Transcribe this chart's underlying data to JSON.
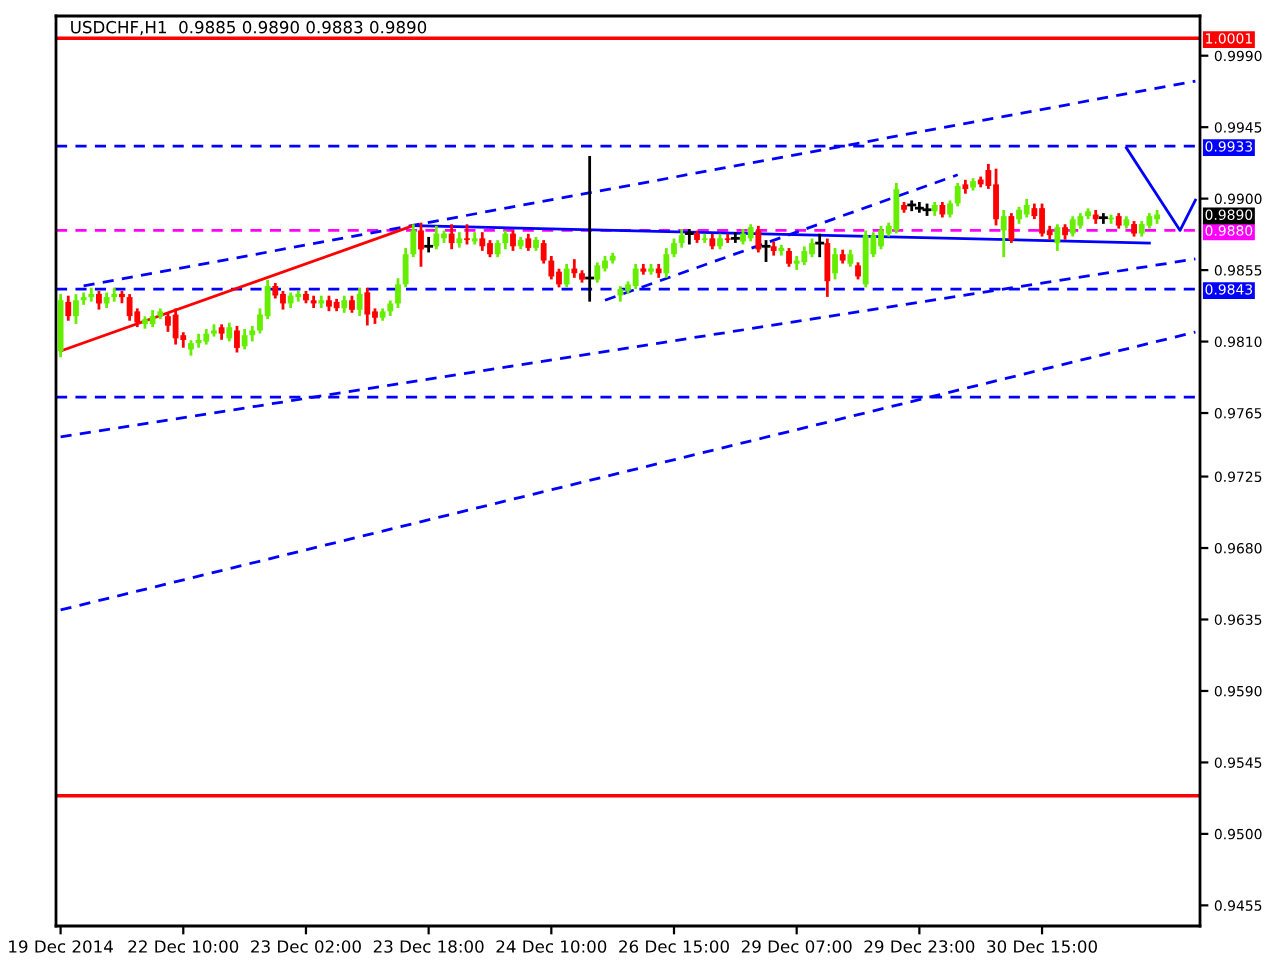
{
  "chart_data": {
    "type": "candlestick",
    "title": "USDCHF,H1  0.9885 0.9890 0.9883 0.9890",
    "categories": [
      "19 Dec 2014",
      null,
      null,
      null,
      null,
      null,
      null,
      null,
      null,
      null,
      null,
      null,
      null,
      null,
      null,
      null,
      "22 Dec 10:00",
      null,
      null,
      null,
      null,
      null,
      null,
      null,
      null,
      null,
      null,
      null,
      null,
      null,
      null,
      null,
      "23 Dec 02:00",
      null,
      null,
      null,
      null,
      null,
      null,
      null,
      null,
      null,
      null,
      null,
      null,
      null,
      null,
      null,
      "23 Dec 18:00",
      null,
      null,
      null,
      null,
      null,
      null,
      null,
      null,
      null,
      null,
      null,
      null,
      null,
      null,
      null,
      "24 Dec 10:00",
      null,
      null,
      null,
      null,
      null,
      null,
      null,
      null,
      null,
      null,
      null,
      null,
      null,
      null,
      null,
      "26 Dec 15:00",
      null,
      null,
      null,
      null,
      null,
      null,
      null,
      null,
      null,
      null,
      null,
      null,
      null,
      null,
      null,
      "29 Dec 07:00",
      null,
      null,
      null,
      null,
      null,
      null,
      null,
      null,
      null,
      null,
      null,
      null,
      null,
      null,
      null,
      "29 Dec 23:00",
      null,
      null,
      null,
      null,
      null,
      null,
      null,
      null,
      null,
      null,
      null,
      null,
      null,
      null,
      null,
      "30 Dec 15:00",
      null,
      null,
      null,
      null,
      null,
      null,
      null,
      null,
      null,
      null,
      null,
      null,
      null,
      null,
      null,
      null,
      null,
      null,
      null,
      null
    ],
    "ohlc": [
      [
        0.9804,
        0.9839,
        0.9801,
        0.9836
      ],
      [
        0.9835,
        0.9838,
        0.9824,
        0.9826
      ],
      [
        0.9826,
        0.9839,
        0.9822,
        0.9836
      ],
      [
        0.9836,
        0.984,
        0.9834,
        0.9838
      ],
      [
        0.9838,
        0.9843,
        0.9836,
        0.984
      ],
      [
        0.984,
        0.9841,
        0.9831,
        0.9834
      ],
      [
        0.9834,
        0.984,
        0.9832,
        0.9838
      ],
      [
        0.9838,
        0.9843,
        0.9836,
        0.984
      ],
      [
        0.984,
        0.9841,
        0.9835,
        0.9838
      ],
      [
        0.9838,
        0.9839,
        0.9824,
        0.9826
      ],
      [
        0.9829,
        0.983,
        0.982,
        0.9822
      ],
      [
        0.9821,
        0.9825,
        0.9819,
        0.9824
      ],
      [
        0.9821,
        0.9829,
        0.982,
        0.9826
      ],
      [
        0.9826,
        0.983,
        0.9825,
        0.9829
      ],
      [
        0.9826,
        0.9827,
        0.9817,
        0.982
      ],
      [
        0.9827,
        0.983,
        0.9809,
        0.9812
      ],
      [
        0.9814,
        0.9815,
        0.9807,
        0.9811
      ],
      [
        0.9805,
        0.981,
        0.9802,
        0.9809
      ],
      [
        0.9809,
        0.9814,
        0.9807,
        0.9811
      ],
      [
        0.981,
        0.9817,
        0.9809,
        0.9815
      ],
      [
        0.9815,
        0.982,
        0.9814,
        0.9817
      ],
      [
        0.9819,
        0.982,
        0.9812,
        0.9815
      ],
      [
        0.9812,
        0.9821,
        0.9811,
        0.9819
      ],
      [
        0.9817,
        0.9819,
        0.9804,
        0.9806
      ],
      [
        0.9807,
        0.9817,
        0.9806,
        0.9814
      ],
      [
        0.9814,
        0.9819,
        0.9811,
        0.9817
      ],
      [
        0.9817,
        0.983,
        0.9816,
        0.9827
      ],
      [
        0.9826,
        0.9848,
        0.9825,
        0.9845
      ],
      [
        0.9845,
        0.9846,
        0.9838,
        0.9839
      ],
      [
        0.984,
        0.9841,
        0.9831,
        0.9834
      ],
      [
        0.9834,
        0.984,
        0.9832,
        0.9839
      ],
      [
        0.9838,
        0.9841,
        0.9836,
        0.984
      ],
      [
        0.984,
        0.9841,
        0.9835,
        0.9836
      ],
      [
        0.9836,
        0.9838,
        0.9832,
        0.9834
      ],
      [
        0.9834,
        0.9838,
        0.9832,
        0.9836
      ],
      [
        0.9836,
        0.9838,
        0.983,
        0.9832
      ],
      [
        0.9835,
        0.9836,
        0.983,
        0.9831
      ],
      [
        0.9831,
        0.9838,
        0.9829,
        0.9836
      ],
      [
        0.9836,
        0.9838,
        0.9829,
        0.983
      ],
      [
        0.983,
        0.9843,
        0.9827,
        0.984
      ],
      [
        0.9841,
        0.9843,
        0.9821,
        0.9827
      ],
      [
        0.9829,
        0.983,
        0.9822,
        0.9825
      ],
      [
        0.9825,
        0.983,
        0.9824,
        0.9829
      ],
      [
        0.9829,
        0.9835,
        0.9827,
        0.9834
      ],
      [
        0.9834,
        0.9849,
        0.9832,
        0.9846
      ],
      [
        0.9846,
        0.9868,
        0.9845,
        0.9865
      ],
      [
        0.9865,
        0.9883,
        0.9864,
        0.988
      ],
      [
        0.988,
        0.9884,
        0.9858,
        0.9868
      ],
      [
        0.987,
        0.9875,
        0.9867,
        0.987
      ],
      [
        0.987,
        0.9882,
        0.9869,
        0.9878
      ],
      [
        0.9875,
        0.9879,
        0.9873,
        0.9878
      ],
      [
        0.9878,
        0.9883,
        0.9869,
        0.9872
      ],
      [
        0.9872,
        0.9878,
        0.987,
        0.9875
      ],
      [
        0.9875,
        0.9883,
        0.9872,
        0.9874
      ],
      [
        0.9873,
        0.9878,
        0.9872,
        0.9875
      ],
      [
        0.9875,
        0.9878,
        0.9868,
        0.987
      ],
      [
        0.9872,
        0.9873,
        0.9864,
        0.9865
      ],
      [
        0.9865,
        0.9873,
        0.9864,
        0.9872
      ],
      [
        0.9872,
        0.9879,
        0.9869,
        0.9878
      ],
      [
        0.9878,
        0.9879,
        0.9868,
        0.987
      ],
      [
        0.987,
        0.9875,
        0.9869,
        0.9874
      ],
      [
        0.9875,
        0.9877,
        0.9868,
        0.9869
      ],
      [
        0.9869,
        0.9875,
        0.9868,
        0.9874
      ],
      [
        0.9872,
        0.9873,
        0.986,
        0.9861
      ],
      [
        0.9861,
        0.9863,
        0.985,
        0.9851
      ],
      [
        0.9854,
        0.9855,
        0.9845,
        0.9846
      ],
      [
        0.9846,
        0.9858,
        0.9845,
        0.9856
      ],
      [
        0.9856,
        0.9861,
        0.9851,
        0.9853
      ],
      [
        0.9853,
        0.9854,
        0.9848,
        0.9849
      ],
      [
        0.985,
        0.9926,
        0.9836,
        0.985
      ],
      [
        0.9849,
        0.9859,
        0.9848,
        0.9858
      ],
      [
        0.9856,
        0.9863,
        0.9855,
        0.9861
      ],
      [
        0.9861,
        0.9865,
        0.986,
        0.9864
      ],
      [
        0.9839,
        0.9844,
        0.9836,
        0.9843
      ],
      [
        0.9842,
        0.9847,
        0.9841,
        0.9846
      ],
      [
        0.9845,
        0.9858,
        0.9844,
        0.9856
      ],
      [
        0.9856,
        0.9858,
        0.9853,
        0.9854
      ],
      [
        0.9854,
        0.9858,
        0.9853,
        0.9856
      ],
      [
        0.9856,
        0.9858,
        0.9851,
        0.9853
      ],
      [
        0.9853,
        0.9868,
        0.9851,
        0.9865
      ],
      [
        0.9865,
        0.9874,
        0.9864,
        0.9872
      ],
      [
        0.9872,
        0.988,
        0.987,
        0.9877
      ],
      [
        0.9878,
        0.988,
        0.9872,
        0.9878
      ],
      [
        0.9878,
        0.9879,
        0.9873,
        0.9874
      ],
      [
        0.9874,
        0.9877,
        0.9873,
        0.9875
      ],
      [
        0.9875,
        0.9877,
        0.9869,
        0.987
      ],
      [
        0.987,
        0.9877,
        0.9869,
        0.9875
      ],
      [
        0.9875,
        0.9877,
        0.9873,
        0.9874
      ],
      [
        0.9875,
        0.9878,
        0.9873,
        0.9875
      ],
      [
        0.9873,
        0.988,
        0.9872,
        0.9878
      ],
      [
        0.9875,
        0.9883,
        0.9874,
        0.9882
      ],
      [
        0.988,
        0.9882,
        0.9867,
        0.9868
      ],
      [
        0.987,
        0.9873,
        0.9861,
        0.987
      ],
      [
        0.987,
        0.9872,
        0.9865,
        0.9867
      ],
      [
        0.9867,
        0.987,
        0.9865,
        0.9869
      ],
      [
        0.9867,
        0.9868,
        0.9858,
        0.9859
      ],
      [
        0.9859,
        0.9863,
        0.9856,
        0.9861
      ],
      [
        0.986,
        0.9869,
        0.9859,
        0.9867
      ],
      [
        0.9865,
        0.9874,
        0.9864,
        0.9872
      ],
      [
        0.9872,
        0.9877,
        0.9864,
        0.9872
      ],
      [
        0.9872,
        0.9874,
        0.9839,
        0.9848
      ],
      [
        0.9853,
        0.9868,
        0.985,
        0.9865
      ],
      [
        0.9865,
        0.9867,
        0.986,
        0.9861
      ],
      [
        0.9859,
        0.9867,
        0.9858,
        0.9865
      ],
      [
        0.9858,
        0.9859,
        0.985,
        0.9851
      ],
      [
        0.9846,
        0.9879,
        0.9845,
        0.9877
      ],
      [
        0.9865,
        0.9878,
        0.9864,
        0.9877
      ],
      [
        0.987,
        0.9882,
        0.9869,
        0.988
      ],
      [
        0.9878,
        0.9884,
        0.9877,
        0.9883
      ],
      [
        0.988,
        0.9909,
        0.9879,
        0.9906
      ],
      [
        0.9896,
        0.9897,
        0.9892,
        0.9893
      ],
      [
        0.9896,
        0.9898,
        0.9893,
        0.9896
      ],
      [
        0.9894,
        0.9897,
        0.9892,
        0.9894
      ],
      [
        0.9893,
        0.9896,
        0.989,
        0.9893
      ],
      [
        0.9892,
        0.9897,
        0.989,
        0.9896
      ],
      [
        0.9896,
        0.9897,
        0.9889,
        0.989
      ],
      [
        0.989,
        0.9898,
        0.9889,
        0.9897
      ],
      [
        0.9897,
        0.9909,
        0.9896,
        0.9908
      ],
      [
        0.9909,
        0.9911,
        0.9904,
        0.9906
      ],
      [
        0.9907,
        0.9912,
        0.9906,
        0.9911
      ],
      [
        0.9912,
        0.9913,
        0.9908,
        0.9909
      ],
      [
        0.9918,
        0.9921,
        0.9907,
        0.9908
      ],
      [
        0.9909,
        0.9918,
        0.9884,
        0.9887
      ],
      [
        0.988,
        0.9892,
        0.9864,
        0.9889
      ],
      [
        0.9889,
        0.989,
        0.9873,
        0.9874
      ],
      [
        0.9887,
        0.9894,
        0.9885,
        0.9893
      ],
      [
        0.989,
        0.9899,
        0.9889,
        0.9896
      ],
      [
        0.9894,
        0.9896,
        0.9888,
        0.9889
      ],
      [
        0.9894,
        0.9896,
        0.9877,
        0.9878
      ],
      [
        0.988,
        0.9882,
        0.9875,
        0.9877
      ],
      [
        0.9872,
        0.9883,
        0.9868,
        0.9882
      ],
      [
        0.9882,
        0.9883,
        0.9875,
        0.9877
      ],
      [
        0.9878,
        0.9888,
        0.9877,
        0.9887
      ],
      [
        0.9883,
        0.989,
        0.9882,
        0.9889
      ],
      [
        0.9889,
        0.9893,
        0.9888,
        0.9892
      ],
      [
        0.989,
        0.9892,
        0.9885,
        0.9887
      ],
      [
        0.9888,
        0.989,
        0.9885,
        0.9888
      ],
      [
        0.9887,
        0.9889,
        0.9885,
        0.9888
      ],
      [
        0.9889,
        0.989,
        0.9882,
        0.9883
      ],
      [
        0.9883,
        0.9888,
        0.9882,
        0.9887
      ],
      [
        0.9884,
        0.9885,
        0.9877,
        0.9878
      ],
      [
        0.9878,
        0.9885,
        0.9877,
        0.9884
      ],
      [
        0.9883,
        0.989,
        0.9882,
        0.9889
      ],
      [
        0.9887,
        0.9892,
        0.9885,
        0.989
      ],
      null,
      null,
      null,
      null,
      null
    ],
    "series": [
      {
        "type": "line",
        "color": "#0000ff",
        "line_style": "dashed",
        "values": [
          null,
          null,
          null,
          0.9845,
          null,
          null,
          null,
          null,
          null,
          null,
          null,
          null,
          null,
          null,
          null,
          null,
          null,
          null,
          null,
          null,
          null,
          null,
          null,
          null,
          null,
          null,
          null,
          null,
          null,
          null,
          null,
          null,
          null,
          null,
          null,
          null,
          null,
          null,
          null,
          null,
          null,
          null,
          null,
          null,
          null,
          null,
          null,
          null,
          null,
          null,
          null,
          null,
          null,
          null,
          null,
          null,
          null,
          null,
          null,
          null,
          null,
          null,
          null,
          null,
          null,
          null,
          null,
          null,
          null,
          null,
          null,
          null,
          null,
          null,
          null,
          null,
          null,
          null,
          null,
          null,
          null,
          null,
          null,
          null,
          null,
          null,
          null,
          null,
          null,
          null,
          null,
          null,
          null,
          null,
          null,
          null,
          null,
          null,
          null,
          null,
          null,
          null,
          null,
          null,
          null,
          null,
          null,
          null,
          null,
          null,
          null,
          null,
          null,
          null,
          null,
          null,
          null,
          null,
          null,
          null,
          null,
          null,
          null,
          null,
          null,
          null,
          null,
          null,
          null,
          null,
          null,
          null,
          null,
          null,
          null,
          null,
          null,
          null,
          null,
          null,
          null,
          null,
          null,
          null,
          null,
          null,
          null,
          null,
          0.9974
        ]
      },
      {
        "type": "line",
        "color": "#0000ff",
        "line_style": "dashed",
        "values": [
          0.975,
          null,
          null,
          null,
          null,
          null,
          null,
          null,
          null,
          null,
          null,
          null,
          null,
          null,
          null,
          null,
          null,
          null,
          null,
          null,
          null,
          null,
          null,
          null,
          null,
          null,
          null,
          null,
          null,
          null,
          null,
          null,
          null,
          null,
          null,
          null,
          null,
          null,
          null,
          null,
          null,
          null,
          null,
          null,
          null,
          null,
          null,
          null,
          null,
          null,
          null,
          null,
          null,
          null,
          null,
          null,
          null,
          null,
          null,
          null,
          null,
          null,
          null,
          null,
          null,
          null,
          null,
          null,
          null,
          null,
          null,
          null,
          null,
          null,
          null,
          null,
          null,
          null,
          null,
          null,
          null,
          null,
          null,
          null,
          null,
          null,
          null,
          null,
          null,
          null,
          null,
          null,
          null,
          null,
          null,
          null,
          null,
          null,
          null,
          null,
          null,
          null,
          null,
          null,
          null,
          null,
          null,
          null,
          null,
          null,
          null,
          null,
          null,
          null,
          null,
          null,
          null,
          null,
          null,
          null,
          null,
          null,
          null,
          null,
          null,
          null,
          null,
          null,
          null,
          null,
          null,
          null,
          null,
          null,
          null,
          null,
          null,
          null,
          null,
          null,
          null,
          null,
          null,
          null,
          null,
          null,
          null,
          null,
          0.9862
        ]
      },
      {
        "type": "line",
        "color": "#0000ff",
        "line_style": "dashed",
        "values": [
          0.9641,
          null,
          null,
          null,
          null,
          null,
          null,
          null,
          null,
          null,
          null,
          null,
          null,
          null,
          null,
          null,
          null,
          null,
          null,
          null,
          null,
          null,
          null,
          null,
          null,
          null,
          null,
          null,
          null,
          null,
          null,
          null,
          null,
          null,
          null,
          null,
          null,
          null,
          null,
          null,
          null,
          null,
          null,
          null,
          null,
          null,
          null,
          null,
          null,
          null,
          null,
          null,
          null,
          null,
          null,
          null,
          null,
          null,
          null,
          null,
          null,
          null,
          null,
          null,
          null,
          null,
          null,
          null,
          null,
          null,
          null,
          null,
          null,
          null,
          null,
          null,
          null,
          null,
          null,
          null,
          null,
          null,
          null,
          null,
          null,
          null,
          null,
          null,
          null,
          null,
          null,
          null,
          null,
          null,
          null,
          null,
          null,
          null,
          null,
          null,
          null,
          null,
          null,
          null,
          null,
          null,
          null,
          null,
          null,
          null,
          null,
          null,
          null,
          null,
          null,
          null,
          null,
          null,
          null,
          null,
          null,
          null,
          null,
          null,
          null,
          null,
          null,
          null,
          null,
          null,
          null,
          null,
          null,
          null,
          null,
          null,
          null,
          null,
          null,
          null,
          null,
          null,
          null,
          null,
          null,
          null,
          null,
          null,
          0.9816
        ]
      },
      {
        "type": "line",
        "color": "#0000ff",
        "line_style": "dashed",
        "values": [
          null,
          null,
          null,
          null,
          null,
          null,
          null,
          null,
          null,
          null,
          null,
          null,
          null,
          null,
          null,
          null,
          null,
          null,
          null,
          null,
          null,
          null,
          null,
          null,
          null,
          null,
          null,
          null,
          null,
          null,
          null,
          null,
          null,
          null,
          null,
          null,
          null,
          null,
          null,
          null,
          null,
          null,
          null,
          null,
          null,
          null,
          null,
          null,
          null,
          null,
          null,
          null,
          null,
          null,
          null,
          null,
          null,
          null,
          null,
          null,
          null,
          null,
          null,
          null,
          null,
          null,
          null,
          null,
          null,
          null,
          null,
          0.9836,
          null,
          null,
          null,
          null,
          null,
          null,
          null,
          null,
          null,
          null,
          null,
          null,
          null,
          null,
          null,
          null,
          null,
          null,
          null,
          null,
          null,
          null,
          null,
          null,
          null,
          null,
          null,
          null,
          null,
          null,
          null,
          null,
          null,
          null,
          null,
          null,
          null,
          null,
          null,
          null,
          null,
          null,
          null,
          null,
          null,
          0.9915,
          null,
          null,
          null,
          null,
          null,
          null,
          null,
          null,
          null,
          null,
          null,
          null,
          null,
          null,
          null,
          null,
          null,
          null,
          null,
          null,
          null,
          null,
          null,
          null,
          null,
          null,
          null,
          null,
          null,
          null,
          null
        ]
      },
      {
        "type": "line",
        "color": "#ff0000",
        "line_style": "solid",
        "values": [
          0.9804,
          null,
          null,
          null,
          null,
          null,
          null,
          null,
          null,
          null,
          null,
          null,
          null,
          null,
          null,
          null,
          null,
          null,
          null,
          null,
          null,
          null,
          null,
          null,
          null,
          null,
          null,
          null,
          null,
          null,
          null,
          null,
          null,
          null,
          null,
          null,
          null,
          null,
          null,
          null,
          null,
          null,
          null,
          null,
          null,
          null,
          0.9883,
          null,
          null,
          null,
          null,
          null,
          null,
          null,
          null,
          null,
          null,
          null,
          null,
          null,
          null,
          null,
          null,
          null,
          null,
          null,
          null,
          null,
          null,
          null,
          null,
          null,
          null,
          null,
          null,
          null,
          null,
          null,
          null,
          null,
          null,
          null,
          null,
          null,
          null,
          null,
          null,
          null,
          null,
          null,
          null,
          null,
          null,
          null,
          null,
          null,
          null,
          null,
          null,
          null,
          null,
          null,
          null,
          null,
          null,
          null,
          null,
          null,
          null,
          null,
          null,
          null,
          null,
          null,
          null,
          null,
          null,
          null,
          null,
          null,
          null,
          null,
          null,
          null,
          null,
          null,
          null,
          null,
          null,
          null,
          null,
          null,
          null,
          null,
          null,
          null,
          null,
          null,
          null,
          null,
          null,
          null,
          null,
          null,
          null,
          null,
          null,
          null,
          null
        ]
      },
      {
        "type": "line",
        "color": "#0000ff",
        "line_style": "solid",
        "values": [
          null,
          null,
          null,
          null,
          null,
          null,
          null,
          null,
          null,
          null,
          null,
          null,
          null,
          null,
          null,
          null,
          null,
          null,
          null,
          null,
          null,
          null,
          null,
          null,
          null,
          null,
          null,
          null,
          null,
          null,
          null,
          null,
          null,
          null,
          null,
          null,
          null,
          null,
          null,
          null,
          null,
          null,
          null,
          null,
          null,
          null,
          0.9883,
          null,
          null,
          null,
          null,
          null,
          null,
          null,
          null,
          null,
          null,
          null,
          null,
          null,
          null,
          null,
          null,
          null,
          null,
          null,
          null,
          null,
          null,
          null,
          null,
          null,
          null,
          null,
          null,
          null,
          null,
          null,
          null,
          null,
          null,
          null,
          null,
          null,
          null,
          null,
          null,
          null,
          null,
          null,
          null,
          null,
          null,
          null,
          null,
          null,
          null,
          null,
          null,
          null,
          null,
          null,
          null,
          null,
          null,
          null,
          null,
          null,
          null,
          null,
          null,
          null,
          null,
          null,
          null,
          null,
          null,
          null,
          null,
          null,
          null,
          null,
          null,
          null,
          null,
          null,
          null,
          null,
          null,
          null,
          null,
          null,
          null,
          null,
          null,
          null,
          null,
          null,
          null,
          null,
          null,
          null,
          0.9872,
          null,
          null,
          null,
          null,
          null,
          null
        ]
      },
      {
        "type": "line",
        "color": "#0000ff",
        "line_style": "solid",
        "values": [
          null,
          null,
          null,
          null,
          null,
          null,
          null,
          null,
          null,
          null,
          null,
          null,
          null,
          null,
          null,
          null,
          null,
          null,
          null,
          null,
          null,
          null,
          null,
          null,
          null,
          null,
          null,
          null,
          null,
          null,
          null,
          null,
          null,
          null,
          null,
          null,
          null,
          null,
          null,
          null,
          null,
          null,
          null,
          null,
          null,
          null,
          null,
          null,
          null,
          null,
          null,
          null,
          null,
          null,
          null,
          null,
          null,
          null,
          null,
          null,
          null,
          null,
          null,
          null,
          null,
          null,
          null,
          null,
          null,
          null,
          null,
          null,
          null,
          null,
          null,
          null,
          null,
          null,
          null,
          null,
          null,
          null,
          null,
          null,
          null,
          null,
          null,
          null,
          null,
          null,
          null,
          null,
          null,
          null,
          null,
          null,
          null,
          null,
          null,
          null,
          null,
          null,
          null,
          null,
          null,
          null,
          null,
          null,
          null,
          null,
          null,
          null,
          null,
          null,
          null,
          null,
          null,
          null,
          null,
          null,
          null,
          null,
          null,
          null,
          null,
          null,
          null,
          null,
          null,
          null,
          null,
          null,
          null,
          null,
          null,
          null,
          null,
          null,
          null,
          0.9932,
          null,
          null,
          null,
          null,
          null,
          null,
          0.988,
          null,
          0.9899
        ]
      }
    ],
    "annotations": [
      "0.9890"
    ],
    "ref_lines": [
      {
        "axis": "y",
        "value": 1.0001,
        "label": "1.0001",
        "color": "#ff0000",
        "line_style": "solid"
      },
      {
        "axis": "y",
        "value": 0.9933,
        "label": "0.9933",
        "color": "#0000ff",
        "line_style": "dashed"
      },
      {
        "axis": "y",
        "value": 0.988,
        "label": "0.9880",
        "color": "#ff00ff",
        "line_style": "dashed"
      },
      {
        "axis": "y",
        "value": 0.9843,
        "label": "0.9843",
        "color": "#0000ff",
        "line_style": "dashed"
      },
      {
        "axis": "y",
        "value": 0.9775,
        "color": "#0000ff",
        "line_style": "dashed"
      },
      {
        "axis": "y",
        "value": 0.9524,
        "color": "#ff0000",
        "line_style": "solid"
      }
    ],
    "ylim": [
      0.9442,
      1.0015
    ],
    "yticks": [
      {
        "value": 0.999,
        "label": "0.9990"
      },
      {
        "value": 0.9945,
        "label": "0.9945"
      },
      {
        "value": 0.99,
        "label": "0.9900"
      },
      {
        "value": 0.9855,
        "label": "0.9855"
      },
      {
        "value": 0.981,
        "label": "0.9810"
      },
      {
        "value": 0.9765,
        "label": "0.9765"
      },
      {
        "value": 0.9725,
        "label": "0.9725"
      },
      {
        "value": 0.968,
        "label": "0.9680"
      },
      {
        "value": 0.9635,
        "label": "0.9635"
      },
      {
        "value": 0.959,
        "label": "0.9590"
      },
      {
        "value": 0.9545,
        "label": "0.9545"
      },
      {
        "value": 0.95,
        "label": "0.9500"
      },
      {
        "value": 0.9455,
        "label": "0.9455"
      }
    ]
  }
}
